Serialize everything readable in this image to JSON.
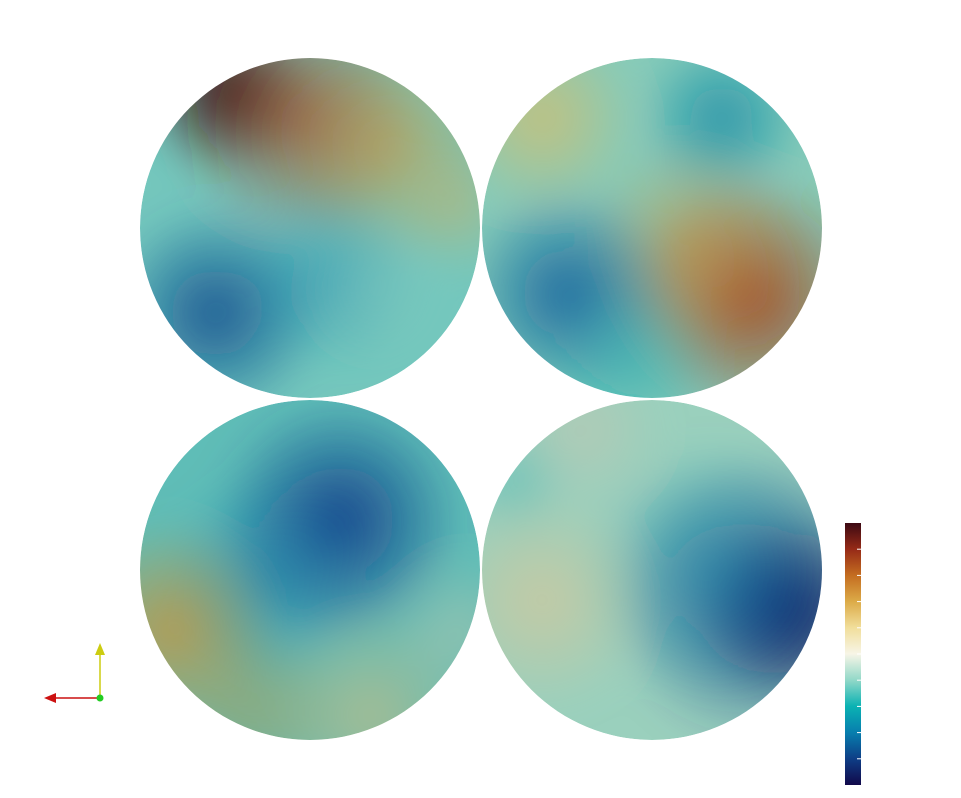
{
  "viewer": {
    "background": "#ffffff"
  },
  "colorbar": {
    "colors": [
      "#11094a",
      "#0e3e86",
      "#077eae",
      "#0ab2b3",
      "#91d8c8",
      "#f7f5e7",
      "#f1de9b",
      "#dcab48",
      "#c46d20",
      "#962a17",
      "#3c0913"
    ],
    "tick_count": 10
  },
  "orientation_axes": {
    "x_color": "#cc1111",
    "y_color": "#cccc11",
    "z_color": "#22cc22"
  },
  "discs": [
    {
      "id": "top-left",
      "base": "#74c7bd",
      "blobs": [
        {
          "color": "#2a0508",
          "strength": 0.95
        },
        {
          "color": "#a33a17",
          "strength": 0.7
        },
        {
          "color": "#d39a3c",
          "strength": 0.6
        },
        {
          "color": "#c9b46c",
          "strength": 0.5
        },
        {
          "color": "#0c4d8f",
          "strength": 0.9
        },
        {
          "color": "#0b7eac",
          "strength": 0.5
        },
        {
          "color": "#8fcfbf",
          "strength": 0.4
        }
      ]
    },
    {
      "id": "top-right",
      "base": "#86cbb9",
      "blobs": [
        {
          "color": "#d8bd6a",
          "strength": 0.75
        },
        {
          "color": "#0d88a6",
          "strength": 0.8
        },
        {
          "color": "#a4421a",
          "strength": 0.9
        },
        {
          "color": "#cf8e34",
          "strength": 0.55
        },
        {
          "color": "#0c609d",
          "strength": 0.9
        },
        {
          "color": "#11a7b0",
          "strength": 0.5
        }
      ]
    },
    {
      "id": "bottom-left",
      "base": "#5fbdb7",
      "blobs": [
        {
          "color": "#0c3c8a",
          "strength": 0.95
        },
        {
          "color": "#0d7aa8",
          "strength": 0.55
        },
        {
          "color": "#c8943c",
          "strength": 0.85
        },
        {
          "color": "#d6bb7a",
          "strength": 0.6
        },
        {
          "color": "#cdc8a8",
          "strength": 0.45
        },
        {
          "color": "#b79645",
          "strength": 0.5
        }
      ]
    },
    {
      "id": "bottom-right",
      "base": "#9ad0bd",
      "blobs": [
        {
          "color": "#0e0b4a",
          "strength": 0.95
        },
        {
          "color": "#0b2f80",
          "strength": 0.75
        },
        {
          "color": "#0c89ac",
          "strength": 0.55
        },
        {
          "color": "#d4c79b",
          "strength": 0.75
        },
        {
          "color": "#c9c4ae",
          "strength": 0.5
        },
        {
          "color": "#3fb3b4",
          "strength": 0.45
        }
      ]
    }
  ]
}
